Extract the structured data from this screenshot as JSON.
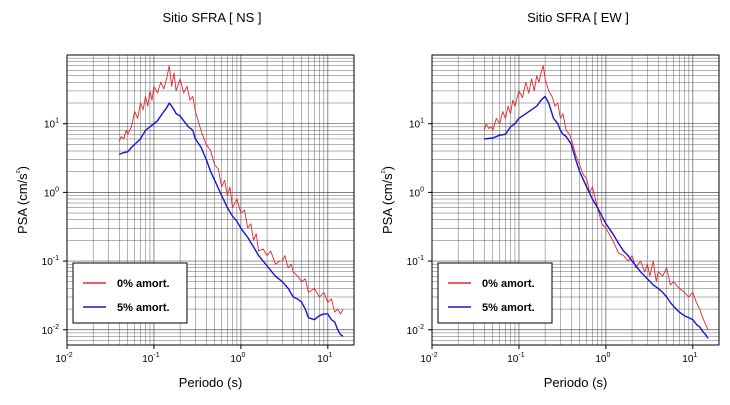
{
  "colors": {
    "red": "#e8262a",
    "blue": "#1515d6"
  },
  "chart_data": [
    {
      "type": "line",
      "title": "Sitio SFRA [ NS ]",
      "xlabel": "Periodo (s)",
      "ylabel": "PSA (cm/s²)",
      "xscale": "log",
      "yscale": "log",
      "xlim": [
        0.01,
        20
      ],
      "ylim": [
        0.006,
        100
      ],
      "x_ticks": [
        {
          "base": "10",
          "exp": "-2"
        },
        {
          "base": "10",
          "exp": "-1"
        },
        {
          "base": "10",
          "exp": "0"
        },
        {
          "base": "10",
          "exp": "1"
        }
      ],
      "y_ticks": [
        {
          "base": "10",
          "exp": "-2"
        },
        {
          "base": "10",
          "exp": "-1"
        },
        {
          "base": "10",
          "exp": "0"
        },
        {
          "base": "10",
          "exp": "1"
        }
      ],
      "grid": true,
      "legend": "bottom-left",
      "series": [
        {
          "name": "0% amort.",
          "color": "#e8262a",
          "points": [
            [
              0.04,
              5.5
            ],
            [
              0.042,
              6.5
            ],
            [
              0.045,
              6
            ],
            [
              0.048,
              8
            ],
            [
              0.05,
              7
            ],
            [
              0.055,
              9
            ],
            [
              0.06,
              15
            ],
            [
              0.065,
              12
            ],
            [
              0.07,
              20
            ],
            [
              0.075,
              16
            ],
            [
              0.08,
              25
            ],
            [
              0.085,
              18
            ],
            [
              0.09,
              30
            ],
            [
              0.095,
              22
            ],
            [
              0.1,
              35
            ],
            [
              0.11,
              28
            ],
            [
              0.12,
              40
            ],
            [
              0.13,
              32
            ],
            [
              0.14,
              45
            ],
            [
              0.15,
              70
            ],
            [
              0.16,
              35
            ],
            [
              0.17,
              55
            ],
            [
              0.18,
              30
            ],
            [
              0.2,
              45
            ],
            [
              0.22,
              28
            ],
            [
              0.24,
              35
            ],
            [
              0.26,
              22
            ],
            [
              0.28,
              25
            ],
            [
              0.3,
              15
            ],
            [
              0.33,
              10
            ],
            [
              0.36,
              7
            ],
            [
              0.4,
              5
            ],
            [
              0.45,
              4
            ],
            [
              0.5,
              2.5
            ],
            [
              0.55,
              2.2
            ],
            [
              0.6,
              1.2
            ],
            [
              0.65,
              1.5
            ],
            [
              0.7,
              0.9
            ],
            [
              0.75,
              1.2
            ],
            [
              0.8,
              0.6
            ],
            [
              0.9,
              0.8
            ],
            [
              1.0,
              0.5
            ],
            [
              1.1,
              0.55
            ],
            [
              1.2,
              0.3
            ],
            [
              1.3,
              0.35
            ],
            [
              1.4,
              0.2
            ],
            [
              1.5,
              0.25
            ],
            [
              1.6,
              0.14
            ],
            [
              1.8,
              0.15
            ],
            [
              2.0,
              0.12
            ],
            [
              2.2,
              0.14
            ],
            [
              2.5,
              0.09
            ],
            [
              2.8,
              0.1
            ],
            [
              3.0,
              0.1
            ],
            [
              3.2,
              0.12
            ],
            [
              3.5,
              0.08
            ],
            [
              3.8,
              0.09
            ],
            [
              4.0,
              0.07
            ],
            [
              4.5,
              0.06
            ],
            [
              5.0,
              0.05
            ],
            [
              5.5,
              0.055
            ],
            [
              6.0,
              0.035
            ],
            [
              7.0,
              0.04
            ],
            [
              8.0,
              0.03
            ],
            [
              9.0,
              0.035
            ],
            [
              10.0,
              0.025
            ],
            [
              11.0,
              0.028
            ],
            [
              12.0,
              0.018
            ],
            [
              13.0,
              0.02
            ],
            [
              14.0,
              0.017
            ],
            [
              15.0,
              0.02
            ]
          ]
        },
        {
          "name": "5% amort.",
          "color": "#1515d6",
          "points": [
            [
              0.04,
              3.6
            ],
            [
              0.045,
              3.8
            ],
            [
              0.05,
              3.9
            ],
            [
              0.055,
              4.5
            ],
            [
              0.06,
              5
            ],
            [
              0.07,
              6
            ],
            [
              0.08,
              8
            ],
            [
              0.09,
              9
            ],
            [
              0.1,
              10
            ],
            [
              0.11,
              11
            ],
            [
              0.12,
              13
            ],
            [
              0.13,
              15
            ],
            [
              0.14,
              17
            ],
            [
              0.15,
              20
            ],
            [
              0.16,
              18
            ],
            [
              0.17,
              16
            ],
            [
              0.18,
              14
            ],
            [
              0.2,
              13
            ],
            [
              0.22,
              11
            ],
            [
              0.25,
              9
            ],
            [
              0.28,
              8
            ],
            [
              0.3,
              6
            ],
            [
              0.35,
              4.5
            ],
            [
              0.4,
              3
            ],
            [
              0.45,
              2
            ],
            [
              0.5,
              1.5
            ],
            [
              0.6,
              0.9
            ],
            [
              0.7,
              0.6
            ],
            [
              0.8,
              0.45
            ],
            [
              0.9,
              0.38
            ],
            [
              1.0,
              0.3
            ],
            [
              1.2,
              0.22
            ],
            [
              1.4,
              0.16
            ],
            [
              1.6,
              0.12
            ],
            [
              1.8,
              0.1
            ],
            [
              2.0,
              0.085
            ],
            [
              2.5,
              0.06
            ],
            [
              3.0,
              0.05
            ],
            [
              3.5,
              0.04
            ],
            [
              4.0,
              0.03
            ],
            [
              4.5,
              0.028
            ],
            [
              5.0,
              0.025
            ],
            [
              5.5,
              0.02
            ],
            [
              6.0,
              0.015
            ],
            [
              7.0,
              0.014
            ],
            [
              8.0,
              0.016
            ],
            [
              9.0,
              0.017
            ],
            [
              10.0,
              0.017
            ],
            [
              11.0,
              0.014
            ],
            [
              12.0,
              0.013
            ],
            [
              13.0,
              0.01
            ],
            [
              14.0,
              0.0085
            ],
            [
              15.0,
              0.008
            ]
          ]
        }
      ]
    },
    {
      "type": "line",
      "title": "Sitio SFRA [ EW ]",
      "xlabel": "Periodo (s)",
      "ylabel": "PSA (cm/s²)",
      "xscale": "log",
      "yscale": "log",
      "xlim": [
        0.01,
        20
      ],
      "ylim": [
        0.006,
        100
      ],
      "x_ticks": [
        {
          "base": "10",
          "exp": "-2"
        },
        {
          "base": "10",
          "exp": "-1"
        },
        {
          "base": "10",
          "exp": "0"
        },
        {
          "base": "10",
          "exp": "1"
        }
      ],
      "y_ticks": [
        {
          "base": "10",
          "exp": "-2"
        },
        {
          "base": "10",
          "exp": "-1"
        },
        {
          "base": "10",
          "exp": "0"
        },
        {
          "base": "10",
          "exp": "1"
        }
      ],
      "grid": true,
      "legend": "bottom-left",
      "series": [
        {
          "name": "0% amort.",
          "color": "#e8262a",
          "points": [
            [
              0.04,
              8
            ],
            [
              0.042,
              10
            ],
            [
              0.045,
              8.5
            ],
            [
              0.048,
              9
            ],
            [
              0.05,
              8
            ],
            [
              0.055,
              12
            ],
            [
              0.06,
              10
            ],
            [
              0.065,
              15
            ],
            [
              0.07,
              12
            ],
            [
              0.075,
              18
            ],
            [
              0.08,
              14
            ],
            [
              0.085,
              22
            ],
            [
              0.09,
              18
            ],
            [
              0.1,
              30
            ],
            [
              0.11,
              24
            ],
            [
              0.12,
              40
            ],
            [
              0.13,
              28
            ],
            [
              0.14,
              45
            ],
            [
              0.15,
              30
            ],
            [
              0.16,
              50
            ],
            [
              0.17,
              40
            ],
            [
              0.18,
              55
            ],
            [
              0.19,
              70
            ],
            [
              0.2,
              45
            ],
            [
              0.22,
              30
            ],
            [
              0.24,
              25
            ],
            [
              0.26,
              18
            ],
            [
              0.28,
              20
            ],
            [
              0.3,
              12
            ],
            [
              0.32,
              14
            ],
            [
              0.35,
              8
            ],
            [
              0.38,
              7
            ],
            [
              0.4,
              6
            ],
            [
              0.45,
              3.5
            ],
            [
              0.5,
              2.5
            ],
            [
              0.55,
              1.8
            ],
            [
              0.6,
              1.6
            ],
            [
              0.65,
              1.0
            ],
            [
              0.7,
              1.2
            ],
            [
              0.8,
              0.6
            ],
            [
              0.9,
              0.35
            ],
            [
              1.0,
              0.3
            ],
            [
              1.2,
              0.2
            ],
            [
              1.4,
              0.13
            ],
            [
              1.6,
              0.12
            ],
            [
              1.8,
              0.1
            ],
            [
              2.0,
              0.12
            ],
            [
              2.2,
              0.08
            ],
            [
              2.5,
              0.1
            ],
            [
              2.8,
              0.07
            ],
            [
              3.0,
              0.09
            ],
            [
              3.2,
              0.06
            ],
            [
              3.5,
              0.1
            ],
            [
              3.8,
              0.05
            ],
            [
              4.0,
              0.07
            ],
            [
              4.5,
              0.06
            ],
            [
              5.0,
              0.08
            ],
            [
              5.5,
              0.045
            ],
            [
              6.0,
              0.05
            ],
            [
              7.0,
              0.04
            ],
            [
              8.0,
              0.035
            ],
            [
              9.0,
              0.03
            ],
            [
              10.0,
              0.035
            ],
            [
              11.0,
              0.025
            ],
            [
              12.0,
              0.02
            ],
            [
              13.0,
              0.015
            ],
            [
              14.0,
              0.012
            ],
            [
              15.0,
              0.01
            ]
          ]
        },
        {
          "name": "5% amort.",
          "color": "#1515d6",
          "points": [
            [
              0.04,
              6
            ],
            [
              0.05,
              6.2
            ],
            [
              0.06,
              6.8
            ],
            [
              0.07,
              7
            ],
            [
              0.08,
              9
            ],
            [
              0.09,
              10
            ],
            [
              0.1,
              12
            ],
            [
              0.11,
              13
            ],
            [
              0.12,
              14
            ],
            [
              0.14,
              16
            ],
            [
              0.16,
              18
            ],
            [
              0.18,
              22
            ],
            [
              0.2,
              25
            ],
            [
              0.22,
              20
            ],
            [
              0.25,
              12
            ],
            [
              0.28,
              10
            ],
            [
              0.3,
              8
            ],
            [
              0.32,
              7
            ],
            [
              0.35,
              6.5
            ],
            [
              0.4,
              5
            ],
            [
              0.45,
              3
            ],
            [
              0.5,
              2
            ],
            [
              0.6,
              1.2
            ],
            [
              0.7,
              0.8
            ],
            [
              0.8,
              0.6
            ],
            [
              0.9,
              0.45
            ],
            [
              1.0,
              0.35
            ],
            [
              1.2,
              0.25
            ],
            [
              1.4,
              0.18
            ],
            [
              1.6,
              0.14
            ],
            [
              1.8,
              0.12
            ],
            [
              2.0,
              0.1
            ],
            [
              2.5,
              0.07
            ],
            [
              3.0,
              0.055
            ],
            [
              3.5,
              0.045
            ],
            [
              4.0,
              0.04
            ],
            [
              4.5,
              0.035
            ],
            [
              5.0,
              0.03
            ],
            [
              5.5,
              0.025
            ],
            [
              6.0,
              0.022
            ],
            [
              7.0,
              0.018
            ],
            [
              8.0,
              0.016
            ],
            [
              9.0,
              0.015
            ],
            [
              10.0,
              0.014
            ],
            [
              11.0,
              0.012
            ],
            [
              12.0,
              0.011
            ],
            [
              13.0,
              0.0095
            ],
            [
              14.0,
              0.0085
            ],
            [
              15.0,
              0.0075
            ]
          ]
        }
      ]
    }
  ]
}
